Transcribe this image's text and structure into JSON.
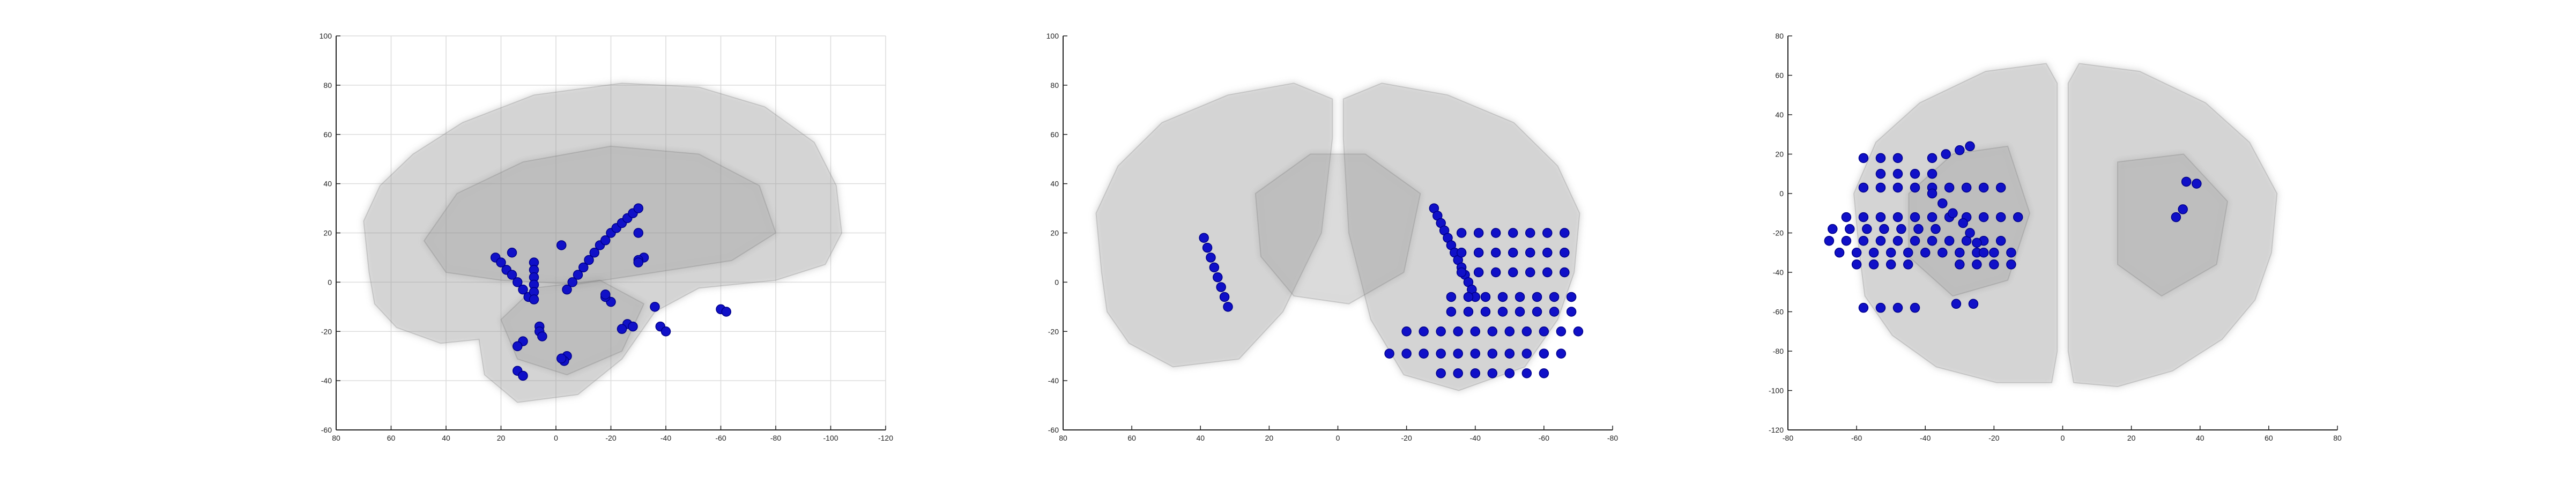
{
  "chart_data": [
    {
      "type": "scatter",
      "view": "sagittal",
      "title": "",
      "xlabel": "",
      "ylabel": "",
      "xlim": [
        80,
        -120
      ],
      "ylim": [
        -60,
        100
      ],
      "xticks": [
        80,
        60,
        40,
        20,
        0,
        -20,
        -40,
        -60,
        -80,
        -100,
        -120
      ],
      "yticks": [
        100,
        80,
        60,
        40,
        20,
        0,
        -20,
        -40,
        -60
      ],
      "xtick_labels": [
        "80",
        "60",
        "40",
        "20",
        "0",
        "-20",
        "-40",
        "-60",
        "-80",
        "-100",
        "-120"
      ],
      "ytick_labels": [
        "100",
        "80",
        "60",
        "40",
        "20",
        "0",
        "-20",
        "-40",
        "-60"
      ],
      "grid": true,
      "marker_color": "#1010c8",
      "background_shape_color": "#8c8c8c",
      "series": [
        {
          "x": [
            22,
            20,
            18,
            16,
            14,
            12,
            10,
            16,
            8,
            8,
            8,
            8,
            8,
            8,
            -4,
            -6,
            -8,
            -10,
            -12,
            -14,
            -16,
            -18,
            -20,
            -22,
            -24,
            -26,
            -28,
            -30,
            6,
            6,
            5,
            -4,
            -3,
            -2,
            -20,
            -18,
            -26,
            -24,
            -32,
            -30,
            -36,
            -38,
            -40,
            -60,
            -62,
            14,
            12,
            -30,
            12,
            14,
            -2,
            -28,
            -18,
            -30
          ],
          "y": [
            10,
            8,
            5,
            3,
            0,
            -3,
            -6,
            12,
            8,
            5,
            2,
            -1,
            -4,
            -7,
            -3,
            0,
            3,
            6,
            9,
            12,
            15,
            17,
            20,
            22,
            24,
            26,
            28,
            30,
            -18,
            -20,
            -22,
            -30,
            -32,
            -31,
            -8,
            -6,
            -17,
            -19,
            10,
            20,
            -10,
            -18,
            -20,
            -11,
            -12,
            -36,
            -38,
            9,
            -24,
            -26,
            15,
            -18,
            -5,
            8
          ]
        }
      ]
    },
    {
      "type": "scatter",
      "view": "coronal",
      "title": "",
      "xlabel": "",
      "ylabel": "",
      "xlim": [
        80,
        -80
      ],
      "ylim": [
        -60,
        100
      ],
      "xticks": [
        80,
        60,
        40,
        20,
        0,
        -20,
        -40,
        -60,
        -80
      ],
      "yticks": [
        100,
        80,
        60,
        40,
        20,
        0,
        -20,
        -40,
        -60
      ],
      "xtick_labels": [
        "80",
        "60",
        "40",
        "20",
        "0",
        "-20",
        "-40",
        "-60",
        "-80"
      ],
      "ytick_labels": [
        "100",
        "80",
        "60",
        "40",
        "20",
        "0",
        "-20",
        "-40",
        "-60"
      ],
      "grid": false,
      "marker_color": "#1010c8",
      "background_shape_color": "#8c8c8c",
      "series": [
        {
          "x": [
            32,
            33,
            34,
            35,
            36,
            37,
            38,
            39,
            -28,
            -29,
            -30,
            -31,
            -32,
            -33,
            -34,
            -35,
            -36,
            -37,
            -38,
            -39,
            -40,
            -36,
            -41,
            -46,
            -51,
            -56,
            -61,
            -66,
            -36,
            -41,
            -46,
            -51,
            -56,
            -61,
            -66,
            -36,
            -41,
            -46,
            -51,
            -56,
            -61,
            -66,
            -33,
            -38,
            -43,
            -48,
            -53,
            -58,
            -63,
            -68,
            -33,
            -38,
            -43,
            -48,
            -53,
            -58,
            -63,
            -68,
            -20,
            -25,
            -30,
            -35,
            -40,
            -45,
            -50,
            -55,
            -60,
            -65,
            -70,
            -15,
            -20,
            -25,
            -30,
            -35,
            -40,
            -45,
            -50,
            -55,
            -60,
            -65,
            -30,
            -35,
            -40,
            -45,
            -50,
            -55,
            -60
          ],
          "y": [
            -10,
            -6,
            -2,
            2,
            6,
            10,
            14,
            18,
            30,
            27,
            24,
            21,
            18,
            15,
            12,
            9,
            6,
            3,
            0,
            -3,
            -6,
            20,
            20,
            20,
            20,
            20,
            20,
            20,
            12,
            12,
            12,
            12,
            12,
            12,
            12,
            4,
            4,
            4,
            4,
            4,
            4,
            4,
            -6,
            -6,
            -6,
            -6,
            -6,
            -6,
            -6,
            -6,
            -12,
            -12,
            -12,
            -12,
            -12,
            -12,
            -12,
            -12,
            -20,
            -20,
            -20,
            -20,
            -20,
            -20,
            -20,
            -20,
            -20,
            -20,
            -20,
            -29,
            -29,
            -29,
            -29,
            -29,
            -29,
            -29,
            -29,
            -29,
            -29,
            -29,
            -37,
            -37,
            -37,
            -37,
            -37,
            -37,
            -37
          ]
        }
      ]
    },
    {
      "type": "scatter",
      "view": "axial",
      "title": "",
      "xlabel": "",
      "ylabel": "",
      "xlim": [
        -80,
        80
      ],
      "ylim": [
        -120,
        80
      ],
      "xticks": [
        -80,
        -60,
        -40,
        -20,
        0,
        20,
        40,
        60,
        80
      ],
      "yticks": [
        80,
        60,
        40,
        20,
        0,
        -20,
        -40,
        -60,
        -80,
        -100,
        -120
      ],
      "xtick_labels": [
        "-80",
        "-60",
        "-40",
        "-20",
        "0",
        "20",
        "40",
        "60",
        "80"
      ],
      "ytick_labels": [
        "80",
        "60",
        "40",
        "20",
        "0",
        "-20",
        "-40",
        "-60",
        "-80",
        "-100",
        "-120"
      ],
      "grid": false,
      "marker_color": "#1010c8",
      "background_shape_color": "#8c8c8c",
      "series": [
        {
          "x": [
            -58,
            -53,
            -48,
            -38,
            -34,
            -30,
            -27,
            -53,
            -48,
            -43,
            -38,
            -58,
            -53,
            -48,
            -43,
            -38,
            -33,
            -28,
            -23,
            -18,
            -63,
            -58,
            -53,
            -48,
            -43,
            -38,
            -33,
            -28,
            -23,
            -18,
            -13,
            -67,
            -62,
            -57,
            -52,
            -47,
            -42,
            -37,
            -68,
            -63,
            -58,
            -53,
            -48,
            -43,
            -38,
            -33,
            -28,
            -23,
            -18,
            -65,
            -60,
            -55,
            -50,
            -45,
            -40,
            -35,
            -30,
            -25,
            -20,
            -15,
            -60,
            -55,
            -50,
            -45,
            -30,
            -25,
            -20,
            -15,
            -38,
            -35,
            -32,
            -29,
            -27,
            -25,
            -23,
            -58,
            -53,
            -48,
            -43,
            -31,
            -26,
            36,
            39,
            33,
            35
          ],
          "y": [
            18,
            18,
            18,
            18,
            20,
            22,
            24,
            10,
            10,
            10,
            10,
            3,
            3,
            3,
            3,
            3,
            3,
            3,
            3,
            3,
            -12,
            -12,
            -12,
            -12,
            -12,
            -12,
            -12,
            -12,
            -12,
            -12,
            -12,
            -18,
            -18,
            -18,
            -18,
            -18,
            -18,
            -18,
            -24,
            -24,
            -24,
            -24,
            -24,
            -24,
            -24,
            -24,
            -24,
            -24,
            -24,
            -30,
            -30,
            -30,
            -30,
            -30,
            -30,
            -30,
            -30,
            -30,
            -30,
            -30,
            -36,
            -36,
            -36,
            -36,
            -36,
            -36,
            -36,
            -36,
            0,
            -5,
            -10,
            -15,
            -20,
            -25,
            -30,
            -58,
            -58,
            -58,
            -58,
            -56,
            -56,
            6,
            5,
            -12,
            -8
          ]
        }
      ]
    }
  ]
}
